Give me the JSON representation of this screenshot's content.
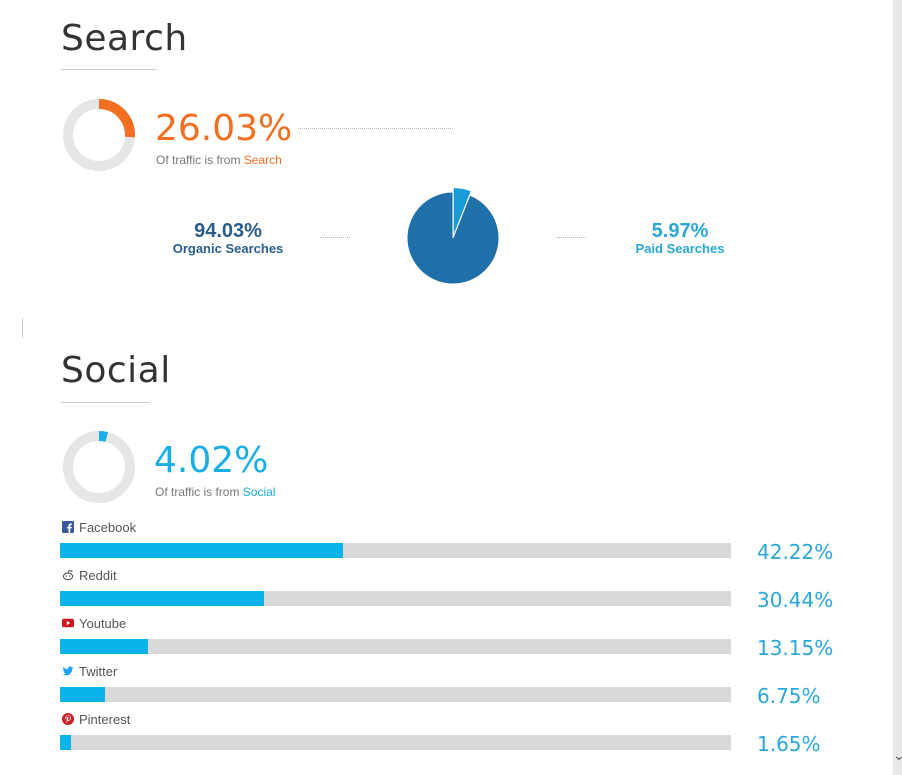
{
  "search": {
    "title": "Search",
    "percent": "26.03%",
    "percent_value": 26.03,
    "caption_prefix": "Of traffic is from ",
    "caption_link": "Search",
    "accent_color": "#f26f21",
    "organic": {
      "percent": "94.03%",
      "label": "Organic Searches",
      "value": 94.03,
      "color": "#2a5d8a"
    },
    "paid": {
      "percent": "5.97%",
      "label": "Paid Searches",
      "value": 5.97,
      "color": "#29a8d8"
    },
    "pie_colors": {
      "organic": "#1f6fa8",
      "paid": "#1a9ad6"
    }
  },
  "social": {
    "title": "Social",
    "percent": "4.02%",
    "percent_value": 4.02,
    "caption_prefix": "Of traffic is from ",
    "caption_link": "Social",
    "accent_color": "#1aaee6",
    "bar_color": "#08b4ea",
    "networks": [
      {
        "name": "Facebook",
        "percent": "42.22%",
        "value": 42.22,
        "icon": "facebook-icon",
        "icon_color": "#3b5998"
      },
      {
        "name": "Reddit",
        "percent": "30.44%",
        "value": 30.44,
        "icon": "reddit-icon",
        "icon_color": "#555555"
      },
      {
        "name": "Youtube",
        "percent": "13.15%",
        "value": 13.15,
        "icon": "youtube-icon",
        "icon_color": "#cc181e"
      },
      {
        "name": "Twitter",
        "percent": "6.75%",
        "value": 6.75,
        "icon": "twitter-icon",
        "icon_color": "#1da1f2"
      },
      {
        "name": "Pinterest",
        "percent": "1.65%",
        "value": 1.65,
        "icon": "pinterest-icon",
        "icon_color": "#cb2027"
      }
    ]
  }
}
